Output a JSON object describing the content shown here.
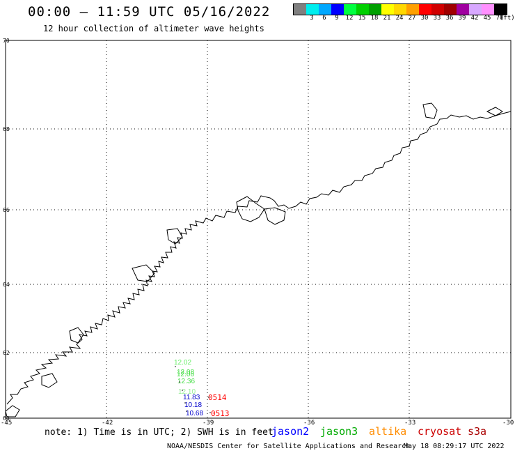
{
  "header": {
    "title": "00:00 – 11:59 UTC 05/16/2022",
    "subtitle": "12 hour collection of altimeter wave heights"
  },
  "legend": {
    "colors": [
      "#808080",
      "#00eeee",
      "#00a8ff",
      "#0000ff",
      "#00ff40",
      "#00d000",
      "#00a000",
      "#ffff00",
      "#ffd800",
      "#ffa000",
      "#ff0000",
      "#d00000",
      "#a00000",
      "#a000a0",
      "#d8a8ff",
      "#ff90ff",
      "#000000"
    ],
    "labels": [
      "",
      "3",
      "6",
      "9",
      "12",
      "15",
      "18",
      "21",
      "24",
      "27",
      "30",
      "33",
      "36",
      "39",
      "42",
      "45",
      "70"
    ],
    "units": "(ft)"
  },
  "map": {
    "lat_labels": [
      "70",
      "68",
      "66",
      "64",
      "62",
      "60"
    ],
    "lon_labels": [
      "-45",
      "-42",
      "-39",
      "-36",
      "-33",
      "-30"
    ],
    "lon_range": [
      -45,
      -30
    ],
    "lat_range": [
      60,
      70
    ]
  },
  "observations": {
    "jason3": [
      {
        "value": "12.02",
        "color": "#66ee66"
      },
      {
        "value": "12.08",
        "color": "#44dd44"
      },
      {
        "value": "12.06",
        "color": "#44dd44"
      },
      {
        "value": "12.36",
        "color": "#44dd44"
      },
      {
        "value": "12.10",
        "color": "#99ee99"
      }
    ],
    "jason2": [
      {
        "value": "11.83",
        "color": "#0000cc"
      },
      {
        "value": "10.18",
        "color": "#0000cc"
      },
      {
        "value": "10.68",
        "color": "#0000cc"
      }
    ],
    "times": [
      {
        "value": "0514",
        "color": "#ff0000"
      },
      {
        "value": "0513",
        "color": "#ff0000"
      }
    ]
  },
  "footer": {
    "note": "note: 1) Time is in UTC; 2) SWH is in feet",
    "satellites": [
      {
        "name": "jason2",
        "color": "#0000ff"
      },
      {
        "name": "jason3",
        "color": "#00aa00"
      },
      {
        "name": "altika",
        "color": "#ff8c00"
      },
      {
        "name": "cryosat",
        "color": "#cc0000"
      },
      {
        "name": "s3a",
        "color": "#aa0000"
      }
    ],
    "credit": "NOAA/NESDIS Center for Satellite Applications and Research",
    "timestamp": "May 18 08:29:17 UTC 2022"
  }
}
